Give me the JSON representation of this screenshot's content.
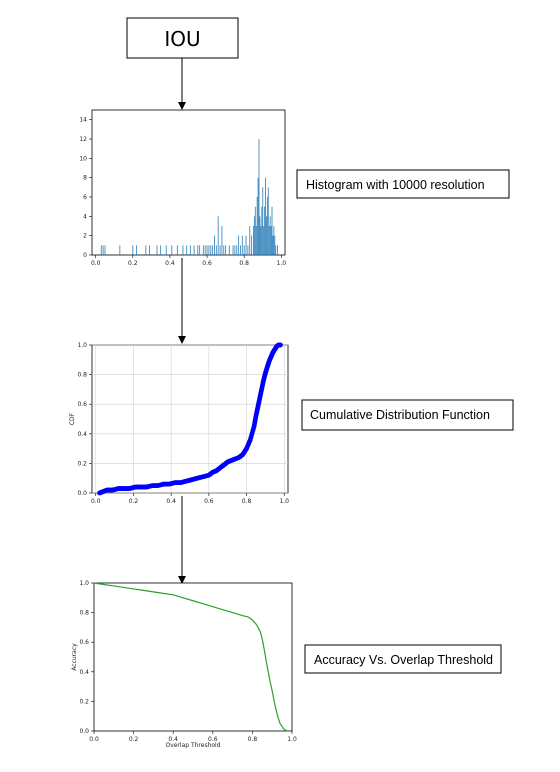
{
  "iou_box": {
    "label": "IOU"
  },
  "labels": {
    "histogram": "Histogram with 10000 resolution",
    "cdf": "Cumulative Distribution Function",
    "accuracy": "Accuracy Vs. Overlap Threshold"
  },
  "colors": {
    "histogram": "#1f77b4",
    "cdf": "#0000ff",
    "accuracy": "#2ca02c",
    "grid": "#d0d0d0"
  },
  "chart_data": [
    {
      "type": "bar",
      "name": "histogram",
      "title": "",
      "xlabel": "",
      "ylabel": "",
      "xlim": [
        -0.02,
        1.02
      ],
      "ylim": [
        0,
        15
      ],
      "xticks": [
        "0.0",
        "0.2",
        "0.4",
        "0.6",
        "0.8",
        "1.0"
      ],
      "yticks": [
        "0",
        "2",
        "4",
        "6",
        "8",
        "10",
        "12",
        "14"
      ],
      "bars": [
        {
          "x": 0.03,
          "y": 1
        },
        {
          "x": 0.04,
          "y": 1
        },
        {
          "x": 0.05,
          "y": 1
        },
        {
          "x": 0.13,
          "y": 1
        },
        {
          "x": 0.2,
          "y": 1
        },
        {
          "x": 0.22,
          "y": 1
        },
        {
          "x": 0.27,
          "y": 1
        },
        {
          "x": 0.29,
          "y": 1
        },
        {
          "x": 0.33,
          "y": 1
        },
        {
          "x": 0.35,
          "y": 1
        },
        {
          "x": 0.38,
          "y": 1
        },
        {
          "x": 0.41,
          "y": 1
        },
        {
          "x": 0.44,
          "y": 1
        },
        {
          "x": 0.47,
          "y": 1
        },
        {
          "x": 0.49,
          "y": 1
        },
        {
          "x": 0.51,
          "y": 1
        },
        {
          "x": 0.53,
          "y": 1
        },
        {
          "x": 0.55,
          "y": 1
        },
        {
          "x": 0.56,
          "y": 1
        },
        {
          "x": 0.58,
          "y": 1
        },
        {
          "x": 0.59,
          "y": 1
        },
        {
          "x": 0.6,
          "y": 1
        },
        {
          "x": 0.61,
          "y": 1
        },
        {
          "x": 0.62,
          "y": 1
        },
        {
          "x": 0.63,
          "y": 1
        },
        {
          "x": 0.64,
          "y": 2
        },
        {
          "x": 0.65,
          "y": 1
        },
        {
          "x": 0.66,
          "y": 4
        },
        {
          "x": 0.67,
          "y": 1
        },
        {
          "x": 0.68,
          "y": 3
        },
        {
          "x": 0.69,
          "y": 1
        },
        {
          "x": 0.7,
          "y": 1
        },
        {
          "x": 0.72,
          "y": 1
        },
        {
          "x": 0.74,
          "y": 1
        },
        {
          "x": 0.75,
          "y": 1
        },
        {
          "x": 0.76,
          "y": 1
        },
        {
          "x": 0.77,
          "y": 2
        },
        {
          "x": 0.78,
          "y": 1
        },
        {
          "x": 0.79,
          "y": 2
        },
        {
          "x": 0.8,
          "y": 1
        },
        {
          "x": 0.81,
          "y": 2
        },
        {
          "x": 0.82,
          "y": 1
        },
        {
          "x": 0.83,
          "y": 3
        },
        {
          "x": 0.84,
          "y": 2
        },
        {
          "x": 0.85,
          "y": 3
        },
        {
          "x": 0.855,
          "y": 4
        },
        {
          "x": 0.86,
          "y": 5
        },
        {
          "x": 0.865,
          "y": 3
        },
        {
          "x": 0.87,
          "y": 6
        },
        {
          "x": 0.875,
          "y": 8
        },
        {
          "x": 0.88,
          "y": 12
        },
        {
          "x": 0.885,
          "y": 4
        },
        {
          "x": 0.89,
          "y": 3
        },
        {
          "x": 0.895,
          "y": 5
        },
        {
          "x": 0.9,
          "y": 7
        },
        {
          "x": 0.905,
          "y": 3
        },
        {
          "x": 0.91,
          "y": 5
        },
        {
          "x": 0.915,
          "y": 8
        },
        {
          "x": 0.92,
          "y": 4
        },
        {
          "x": 0.925,
          "y": 6
        },
        {
          "x": 0.93,
          "y": 7
        },
        {
          "x": 0.935,
          "y": 3
        },
        {
          "x": 0.94,
          "y": 4
        },
        {
          "x": 0.945,
          "y": 3
        },
        {
          "x": 0.95,
          "y": 5
        },
        {
          "x": 0.955,
          "y": 2
        },
        {
          "x": 0.96,
          "y": 3
        },
        {
          "x": 0.965,
          "y": 2
        },
        {
          "x": 0.97,
          "y": 1
        },
        {
          "x": 0.98,
          "y": 1
        }
      ]
    },
    {
      "type": "scatter",
      "name": "cdf",
      "title": "",
      "xlabel": "",
      "ylabel": "CDF",
      "xlim": [
        -0.02,
        1.02
      ],
      "ylim": [
        0,
        1.0
      ],
      "grid": true,
      "xticks": [
        "0.0",
        "0.2",
        "0.4",
        "0.6",
        "0.8",
        "1.0"
      ],
      "yticks": [
        "0.0",
        "0.2",
        "0.4",
        "0.6",
        "0.8",
        "1.0"
      ],
      "x": [
        0.02,
        0.04,
        0.06,
        0.09,
        0.12,
        0.15,
        0.18,
        0.21,
        0.24,
        0.27,
        0.3,
        0.33,
        0.36,
        0.39,
        0.42,
        0.45,
        0.48,
        0.51,
        0.54,
        0.57,
        0.6,
        0.62,
        0.64,
        0.66,
        0.68,
        0.7,
        0.72,
        0.74,
        0.76,
        0.78,
        0.8,
        0.82,
        0.84,
        0.85,
        0.86,
        0.87,
        0.88,
        0.89,
        0.9,
        0.91,
        0.92,
        0.93,
        0.94,
        0.95,
        0.96,
        0.97,
        0.98
      ],
      "y": [
        0.0,
        0.01,
        0.02,
        0.02,
        0.03,
        0.03,
        0.03,
        0.04,
        0.04,
        0.04,
        0.05,
        0.05,
        0.06,
        0.06,
        0.07,
        0.07,
        0.08,
        0.09,
        0.1,
        0.11,
        0.12,
        0.14,
        0.15,
        0.17,
        0.19,
        0.21,
        0.22,
        0.23,
        0.24,
        0.26,
        0.3,
        0.36,
        0.45,
        0.52,
        0.58,
        0.64,
        0.7,
        0.76,
        0.81,
        0.85,
        0.89,
        0.92,
        0.95,
        0.97,
        0.99,
        1.0,
        1.0
      ]
    },
    {
      "type": "line",
      "name": "accuracy",
      "title": "",
      "xlabel": "Overlap Threshold",
      "ylabel": "Accuracy",
      "xlim": [
        0,
        1.0
      ],
      "ylim": [
        0,
        1.0
      ],
      "xticks": [
        "0.0",
        "0.2",
        "0.4",
        "0.6",
        "0.8",
        "1.0"
      ],
      "yticks": [
        "0.0",
        "0.2",
        "0.4",
        "0.6",
        "0.8",
        "1.0"
      ],
      "x": [
        0.0,
        0.05,
        0.1,
        0.15,
        0.2,
        0.25,
        0.3,
        0.35,
        0.4,
        0.45,
        0.5,
        0.55,
        0.6,
        0.65,
        0.7,
        0.75,
        0.78,
        0.8,
        0.82,
        0.84,
        0.85,
        0.86,
        0.87,
        0.88,
        0.89,
        0.9,
        0.91,
        0.92,
        0.93,
        0.94,
        0.95,
        0.96,
        0.97,
        0.98
      ],
      "y": [
        1.0,
        0.99,
        0.98,
        0.97,
        0.96,
        0.95,
        0.94,
        0.93,
        0.92,
        0.9,
        0.88,
        0.86,
        0.84,
        0.82,
        0.8,
        0.78,
        0.77,
        0.75,
        0.72,
        0.67,
        0.62,
        0.55,
        0.47,
        0.4,
        0.33,
        0.27,
        0.2,
        0.14,
        0.09,
        0.05,
        0.03,
        0.01,
        0.005,
        0.0
      ]
    }
  ]
}
